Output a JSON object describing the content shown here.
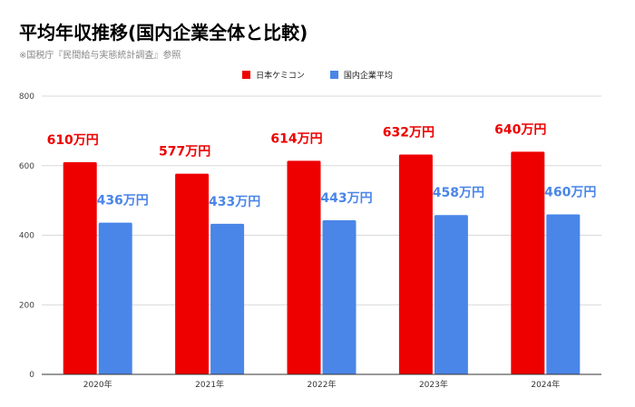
{
  "chart_data": {
    "type": "bar",
    "title": "平均年収推移(国内企業全体と比較)",
    "subtitle": "※国税庁『民間給与実態統計調査』参照",
    "categories": [
      "2020年",
      "2021年",
      "2022年",
      "2023年",
      "2024年"
    ],
    "series": [
      {
        "name": "日本ケミコン",
        "color": "#ee0000",
        "values": [
          610,
          577,
          614,
          632,
          640
        ],
        "labels": [
          "610万円",
          "577万円",
          "614万円",
          "632万円",
          "640万円"
        ],
        "label_color": "#ee0000"
      },
      {
        "name": "国内企業平均",
        "color": "#4a86e8",
        "values": [
          436,
          433,
          443,
          458,
          460
        ],
        "labels": [
          "436万円",
          "433万円",
          "443万円",
          "458万円",
          "460万円"
        ],
        "label_color": "#4a86e8"
      }
    ],
    "yticks": [
      0,
      200,
      400,
      600,
      800
    ],
    "ytick_labels": [
      "0",
      "200",
      "400",
      "600",
      "800"
    ],
    "ylim": [
      0,
      800
    ],
    "grid": true,
    "legend_position": "top-center"
  }
}
